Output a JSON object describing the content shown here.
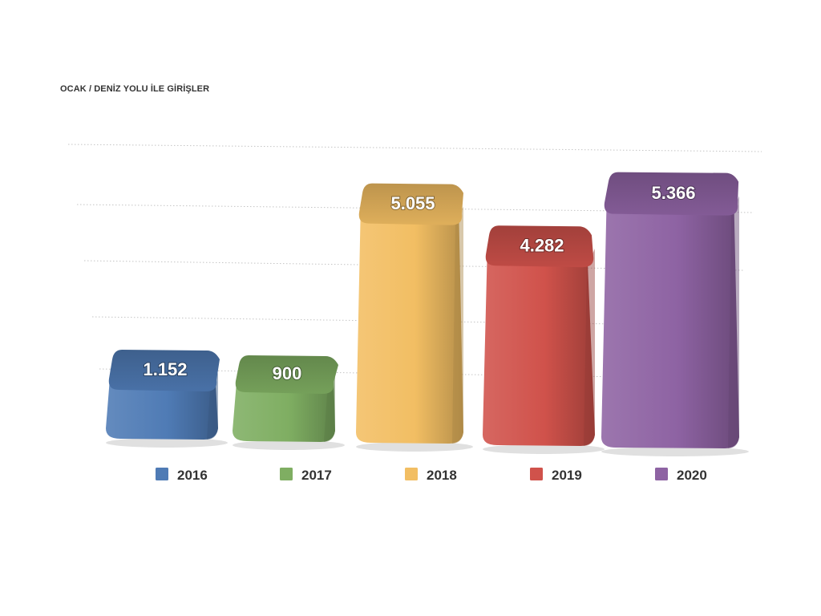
{
  "chart_data": {
    "type": "bar",
    "title": "OCAK / DENİZ YOLU İLE GİRİŞLER",
    "xlabel": "",
    "ylabel": "",
    "categories": [
      "2016",
      "2017",
      "2018",
      "2019",
      "2020"
    ],
    "values": [
      1152,
      900,
      5055,
      4282,
      5366
    ],
    "value_labels": [
      "1.152",
      "900",
      "5.055",
      "4.282",
      "5.366"
    ],
    "colors": [
      "#4f7bb5",
      "#7fae62",
      "#f2be63",
      "#d0524b",
      "#8e63a3"
    ],
    "ylim": [
      0,
      6000
    ],
    "grid": true,
    "legend_position": "bottom",
    "style": "3d-rounded"
  }
}
